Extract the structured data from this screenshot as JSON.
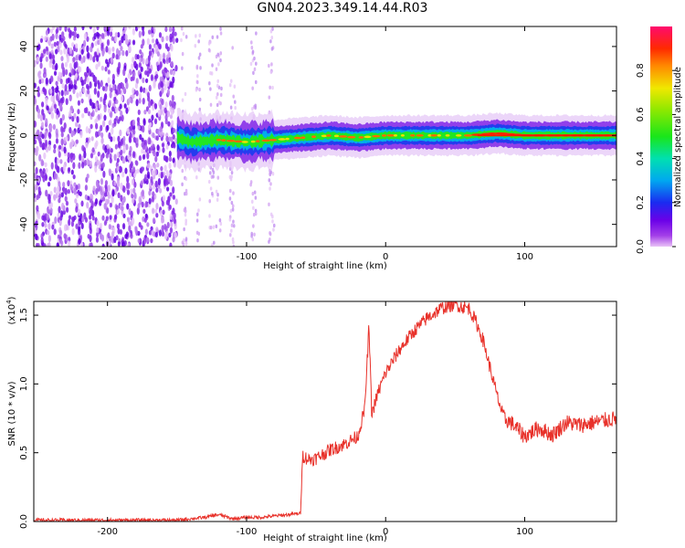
{
  "title": "GN04.2023.349.14.44.R03",
  "chart_data": [
    {
      "type": "heatmap",
      "xlabel": "Height of straight line (km)",
      "ylabel": "Frequency (Hz)",
      "xlim": [
        -253,
        166
      ],
      "ylim": [
        -50,
        49
      ],
      "x_ticks": [
        -200,
        -100,
        0,
        100
      ],
      "x_tick_labels": [
        "-200",
        "-100",
        "0",
        "100"
      ],
      "y_ticks": [
        -40,
        -20,
        0,
        20,
        40
      ],
      "y_tick_labels": [
        "-40",
        "-20",
        "0",
        "20",
        "40"
      ],
      "colorbar": {
        "label": "Normalized spectral amplitude",
        "range": [
          0,
          1
        ],
        "ticks": [
          0,
          0.2,
          0.4,
          0.6,
          0.8
        ],
        "tick_labels": [
          "0.0",
          "0.2",
          "0.4",
          "0.6",
          "0.8"
        ]
      },
      "description_of_data": {
        "noise_region_x": [
          -253,
          -150
        ],
        "sparse_noise_columns_x": [
          -145,
          -135,
          -125,
          -120,
          -110,
          -95,
          -82
        ],
        "signal_band_center_hz": [
          [
            -150,
            -1
          ],
          [
            -140,
            -3
          ],
          [
            -120,
            -2
          ],
          [
            -100,
            -3
          ],
          [
            -80,
            -2
          ],
          [
            -60,
            -1
          ],
          [
            -40,
            0
          ],
          [
            -20,
            -1
          ],
          [
            0,
            0
          ],
          [
            20,
            0
          ],
          [
            40,
            0
          ],
          [
            60,
            0
          ],
          [
            80,
            1
          ],
          [
            100,
            0
          ],
          [
            120,
            0
          ],
          [
            140,
            0
          ],
          [
            166,
            0
          ]
        ]
      },
      "grid": false
    },
    {
      "type": "line",
      "xlabel": "Height of straight line (km)",
      "ylabel": "SNR (10 * v/v)",
      "y_scale_label": "(x10",
      "y_scale_exp": "4",
      "xlim": [
        -253,
        166
      ],
      "ylim": [
        0,
        1.6
      ],
      "x_ticks": [
        -200,
        -100,
        0,
        100
      ],
      "x_tick_labels": [
        "-200",
        "-100",
        "0",
        "100"
      ],
      "y_ticks": [
        0,
        0.5,
        1.0,
        1.5
      ],
      "y_tick_labels": [
        "0.0",
        "0.5",
        "1.0",
        "1.5"
      ],
      "color": "#e8312a",
      "series": [
        {
          "x": [
            -253,
            -200,
            -150,
            -130,
            -120,
            -110,
            -100,
            -90,
            -80,
            -70,
            -61,
            -60,
            -55,
            -50,
            -40,
            -30,
            -20,
            -15,
            -12,
            -10,
            -8,
            -5,
            0,
            10,
            20,
            30,
            40,
            50,
            55,
            60,
            65,
            70,
            75,
            80,
            85,
            90,
            100,
            110,
            120,
            130,
            140,
            150,
            166
          ],
          "y": [
            0.01,
            0.01,
            0.01,
            0.03,
            0.05,
            0.02,
            0.03,
            0.03,
            0.04,
            0.05,
            0.06,
            0.48,
            0.45,
            0.46,
            0.52,
            0.56,
            0.62,
            0.82,
            1.42,
            0.78,
            0.85,
            0.95,
            1.08,
            1.25,
            1.38,
            1.48,
            1.55,
            1.58,
            1.56,
            1.55,
            1.45,
            1.32,
            1.12,
            0.92,
            0.75,
            0.72,
            0.62,
            0.68,
            0.63,
            0.72,
            0.7,
            0.72,
            0.75
          ]
        }
      ],
      "grid": false
    }
  ]
}
